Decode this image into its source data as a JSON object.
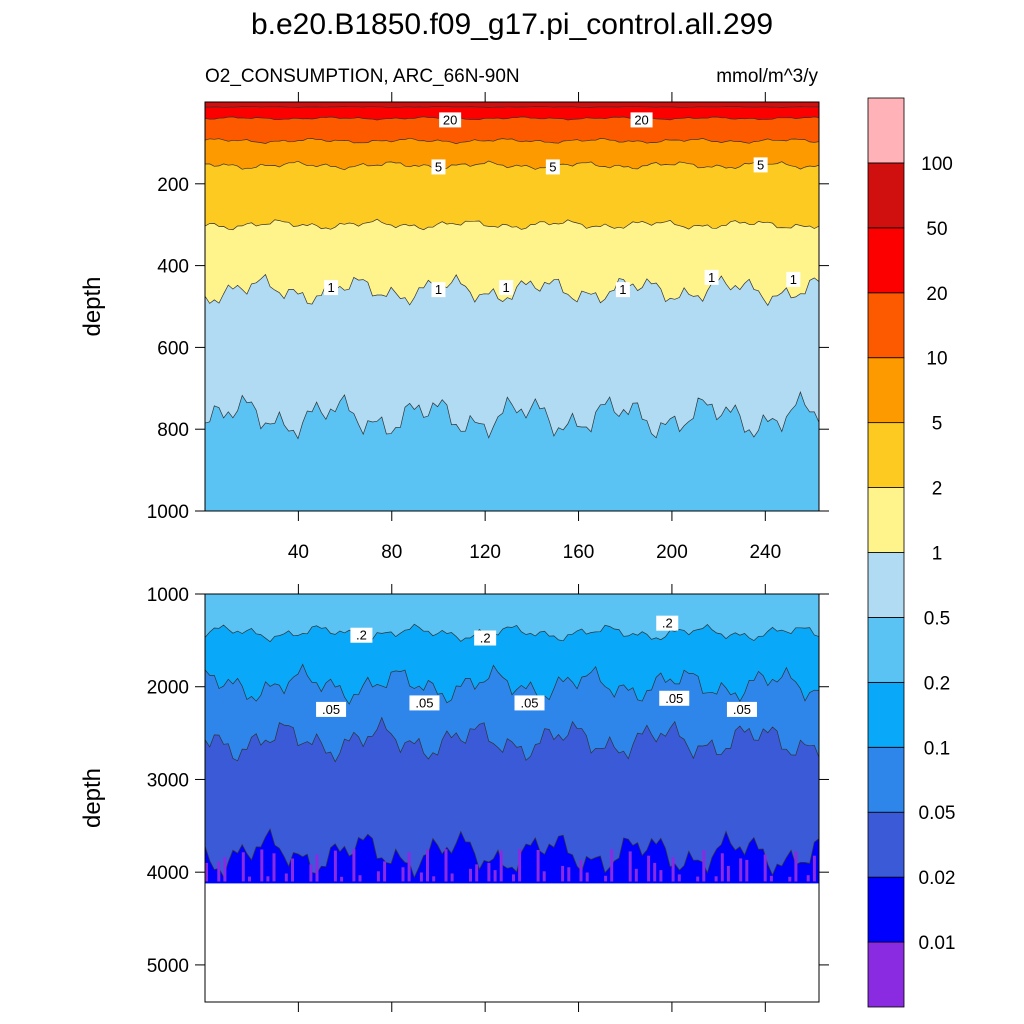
{
  "chart_data": {
    "type": "contour",
    "title": "b.e20.B1850.f09_g17.pi_control.all.299",
    "variable": "O2_CONSUMPTION, ARC_66N-90N",
    "units": "mmol/m^3/y",
    "x_ticks": [
      "40",
      "80",
      "120",
      "160",
      "200",
      "240"
    ],
    "xlim": [
      0,
      263
    ],
    "colorbar": {
      "levels": [
        "0.01",
        "0.02",
        "0.05",
        "0.1",
        "0.2",
        "0.5",
        "1",
        "2",
        "5",
        "10",
        "20",
        "50",
        "100"
      ],
      "colors": [
        "#8a2be2",
        "#0000ff",
        "#3a5ad8",
        "#2f86ea",
        "#0aa8f8",
        "#5ac3f3",
        "#b0dbf2",
        "#fff48c",
        "#fdca21",
        "#fd9a00",
        "#fd5a00",
        "#fc0000",
        "#d00f0f",
        "#ffb3b8"
      ]
    },
    "panels": [
      {
        "ylabel": "depth",
        "ylim": [
          1000,
          0
        ],
        "y_ticks": [
          "200",
          "400",
          "600",
          "800",
          "1000"
        ],
        "bands": [
          {
            "level": "100",
            "base_depth": 0,
            "amp": 0,
            "color": "#d00f0f"
          },
          {
            "level": "50",
            "base_depth": 12,
            "amp": 1,
            "color": "#fc0000"
          },
          {
            "level": "20",
            "base_depth": 40,
            "amp": 3,
            "color": "#fd5a00"
          },
          {
            "level": "10",
            "base_depth": 95,
            "amp": 5,
            "color": "#fd9a00"
          },
          {
            "level": "5",
            "base_depth": 155,
            "amp": 8,
            "color": "#fdca21"
          },
          {
            "level": "2",
            "base_depth": 300,
            "amp": 10,
            "color": "#fff48c"
          },
          {
            "level": "1",
            "base_depth": 460,
            "amp": 30,
            "color": "#b0dbf2"
          },
          {
            "level": "0.5",
            "base_depth": 770,
            "amp": 45,
            "color": "#5ac3f3"
          }
        ],
        "contour_labels": [
          {
            "text": "20",
            "x": 105,
            "depth": 45
          },
          {
            "text": "20",
            "x": 187,
            "depth": 45
          },
          {
            "text": "5",
            "x": 100,
            "depth": 160
          },
          {
            "text": "5",
            "x": 149,
            "depth": 160
          },
          {
            "text": "5",
            "x": 238,
            "depth": 155
          },
          {
            "text": "1",
            "x": 54,
            "depth": 455
          },
          {
            "text": "1",
            "x": 100,
            "depth": 460
          },
          {
            "text": "1",
            "x": 129,
            "depth": 455
          },
          {
            "text": "1",
            "x": 179,
            "depth": 460
          },
          {
            "text": "1",
            "x": 217,
            "depth": 430
          },
          {
            "text": "1",
            "x": 252,
            "depth": 435
          }
        ]
      },
      {
        "ylabel": "depth",
        "ylim": [
          5400,
          1000
        ],
        "y_ticks": [
          "1000",
          "2000",
          "3000",
          "4000",
          "5000"
        ],
        "data_max_depth": 4120,
        "bands": [
          {
            "level": "0.2",
            "base_depth": 1000,
            "amp": 0,
            "color": "#5ac3f3"
          },
          {
            "level": "0.1",
            "base_depth": 1420,
            "amp": 70,
            "color": "#0aa8f8"
          },
          {
            "level": "0.05",
            "base_depth": 1980,
            "amp": 160,
            "color": "#2f86ea"
          },
          {
            "level": "0.02",
            "base_depth": 2580,
            "amp": 180,
            "color": "#3a5ad8"
          },
          {
            "level": "0.01",
            "base_depth": 3800,
            "amp": 200,
            "color": "#0000ff"
          }
        ],
        "contour_labels": [
          {
            "text": ".2",
            "x": 67,
            "depth": 1450
          },
          {
            "text": ".2",
            "x": 120,
            "depth": 1480
          },
          {
            "text": ".2",
            "x": 198,
            "depth": 1320
          },
          {
            "text": ".05",
            "x": 54,
            "depth": 2250
          },
          {
            "text": ".05",
            "x": 94,
            "depth": 2180
          },
          {
            "text": ".05",
            "x": 139,
            "depth": 2180
          },
          {
            "text": ".05",
            "x": 201,
            "depth": 2130
          },
          {
            "text": ".05",
            "x": 230,
            "depth": 2250
          }
        ]
      }
    ]
  }
}
